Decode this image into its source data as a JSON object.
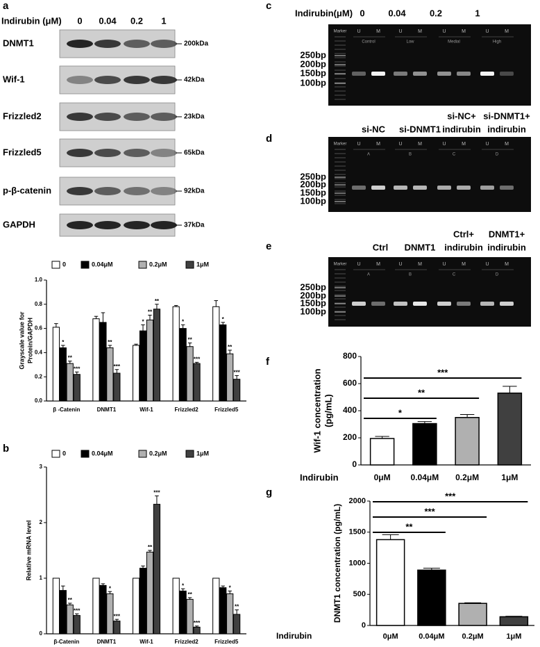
{
  "blot": {
    "panel_label": "a",
    "treatment": "Indirubin (μM)",
    "doses": [
      "0",
      "0.04",
      "0.2",
      "1"
    ],
    "rows": [
      {
        "protein": "DNMT1",
        "size": "200kDa"
      },
      {
        "protein": "Wif-1",
        "size": "42kDa"
      },
      {
        "protein": "Frizzled2",
        "size": "23kDa"
      },
      {
        "protein": "Frizzled5",
        "size": "65kDa"
      },
      {
        "protein": "p-β-catenin",
        "size": "92kDa"
      },
      {
        "protein": "GAPDH",
        "size": "37kDa"
      }
    ]
  },
  "gels": [
    {
      "panel_label": "c",
      "header": "Indirubin(μM)",
      "columns": [
        [
          "0"
        ],
        [
          "0.04"
        ],
        [
          "0.2"
        ],
        [
          "1"
        ]
      ],
      "marker": "Marker",
      "lanes": [
        "U",
        "M",
        "U",
        "M",
        "U",
        "M",
        "U",
        "M"
      ],
      "groups": [
        "Control",
        "Low",
        "Medial",
        "High"
      ],
      "ladder": [
        "250bp",
        "200bp",
        "150bp",
        "100bp"
      ]
    },
    {
      "panel_label": "d",
      "columns": [
        [
          "si-NC"
        ],
        [
          "si-DNMT1"
        ],
        [
          "si-NC+",
          "indirubin"
        ],
        [
          "si-DNMT1+",
          "indirubin"
        ]
      ],
      "marker": "Marker",
      "lanes": [
        "U",
        "M",
        "U",
        "M",
        "U",
        "M",
        "U",
        "M"
      ],
      "groups": [
        "A",
        "B",
        "C",
        "D"
      ],
      "ladder": [
        "250bp",
        "200bp",
        "150bp",
        "100bp"
      ]
    },
    {
      "panel_label": "e",
      "columns": [
        [
          "Ctrl"
        ],
        [
          "DNMT1"
        ],
        [
          "Ctrl+",
          "indirubin"
        ],
        [
          "DNMT1+",
          "indirubin"
        ]
      ],
      "marker": "Marker",
      "lanes": [
        "U",
        "M",
        "U",
        "M",
        "U",
        "M",
        "U",
        "M"
      ],
      "groups": [
        "A",
        "B",
        "C",
        "D"
      ],
      "ladder": [
        "250bp",
        "200bp",
        "150bp",
        "100bp"
      ]
    }
  ],
  "chart_data": [
    {
      "type": "bar",
      "ylabel": [
        "Grayscale value for",
        "Protein/GAPDH"
      ],
      "categories": [
        "β -Catenin",
        "DNMT1",
        "Wif-1",
        "Frizzled2",
        "Frizzled5"
      ],
      "ylim": [
        0,
        1
      ],
      "yticks": [
        {
          "value": 0,
          "label": "0.0"
        },
        0.2,
        0.4,
        0.6,
        0.8,
        {
          "value": 1,
          "label": "1.0"
        }
      ],
      "series": [
        {
          "name": "0",
          "color": "#ffffff",
          "values": [
            0.61,
            0.68,
            0.46,
            0.78,
            0.78
          ],
          "errors": [
            0.03,
            0.02,
            0.01,
            0.01,
            0.05
          ]
        },
        {
          "name": "0.04μM",
          "color": "#000000",
          "values": [
            0.44,
            0.65,
            0.58,
            0.6,
            0.63
          ],
          "errors": [
            0.02,
            0.08,
            0.05,
            0.03,
            0.02
          ],
          "stars": [
            "*",
            null,
            "*",
            "*",
            "*"
          ]
        },
        {
          "name": "0.2μM",
          "color": "#b0b0b0",
          "values": [
            0.31,
            0.44,
            0.67,
            0.45,
            0.39
          ],
          "errors": [
            0.02,
            0.02,
            0.04,
            0.03,
            0.03
          ],
          "stars": [
            "**",
            "**",
            "**",
            "**",
            "**"
          ]
        },
        {
          "name": "1μM",
          "color": "#404040",
          "values": [
            0.22,
            0.23,
            0.76,
            0.31,
            0.18
          ],
          "errors": [
            0.02,
            0.03,
            0.04,
            0.01,
            0.03
          ],
          "stars": [
            "***",
            "***",
            "**",
            "***",
            "***"
          ]
        }
      ]
    },
    {
      "type": "bar",
      "panel_label": "b",
      "ylabel": [
        "Relative mRNA level"
      ],
      "categories": [
        "β-Catenin",
        "DNMT1",
        "Wif-1",
        "Frizzled2",
        "Frizzled5"
      ],
      "ylim": [
        0,
        3
      ],
      "yticks": [
        0,
        1,
        2,
        3
      ],
      "series": [
        {
          "name": "0",
          "color": "#ffffff",
          "values": [
            1,
            1,
            1,
            1,
            1
          ]
        },
        {
          "name": "0.04μM",
          "color": "#000000",
          "values": [
            0.78,
            0.87,
            1.18,
            0.77,
            0.83
          ],
          "errors": [
            0.08,
            0.03,
            0.04,
            0.04,
            0.03
          ],
          "stars": [
            null,
            null,
            null,
            "*",
            null
          ]
        },
        {
          "name": "0.2μM",
          "color": "#b0b0b0",
          "values": [
            0.52,
            0.72,
            1.47,
            0.62,
            0.72
          ],
          "errors": [
            0.03,
            0.04,
            0.03,
            0.03,
            0.05
          ],
          "stars": [
            "**",
            "*",
            "**",
            "**",
            "*"
          ]
        },
        {
          "name": "1μM",
          "color": "#404040",
          "values": [
            0.33,
            0.23,
            2.33,
            0.12,
            0.35
          ],
          "errors": [
            0.03,
            0.03,
            0.15,
            0.02,
            0.08
          ],
          "stars": [
            "***",
            "***",
            "***",
            "***",
            "**"
          ]
        }
      ]
    },
    {
      "type": "bar",
      "panel_label": "f",
      "ylabel": [
        "Wif-1 concentration",
        "(pg/mL)"
      ],
      "xlabel": "Indirubin",
      "categories": [
        "0μM",
        "0.04μM",
        "0.2μM",
        "1μM"
      ],
      "values": [
        195,
        305,
        350,
        530
      ],
      "errors": [
        15,
        15,
        22,
        50
      ],
      "colors": [
        "#ffffff",
        "#000000",
        "#b0b0b0",
        "#404040"
      ],
      "ylim": [
        0,
        800
      ],
      "yticks": [
        0,
        200,
        400,
        600,
        800
      ],
      "significance": [
        "*",
        "**",
        "***"
      ]
    },
    {
      "type": "bar",
      "panel_label": "g",
      "ylabel": [
        "DNMT1 concentration (pg/mL)"
      ],
      "xlabel": "Indirubin",
      "categories": [
        "0μM",
        "0.04μM",
        "0.2μM",
        "1μM"
      ],
      "values": [
        1380,
        890,
        355,
        140
      ],
      "errors": [
        80,
        30,
        10,
        8
      ],
      "colors": [
        "#ffffff",
        "#000000",
        "#b0b0b0",
        "#404040"
      ],
      "ylim": [
        0,
        2000
      ],
      "yticks": [
        0,
        500,
        1000,
        1500,
        2000
      ],
      "significance": [
        "**",
        "***",
        "***"
      ]
    }
  ]
}
